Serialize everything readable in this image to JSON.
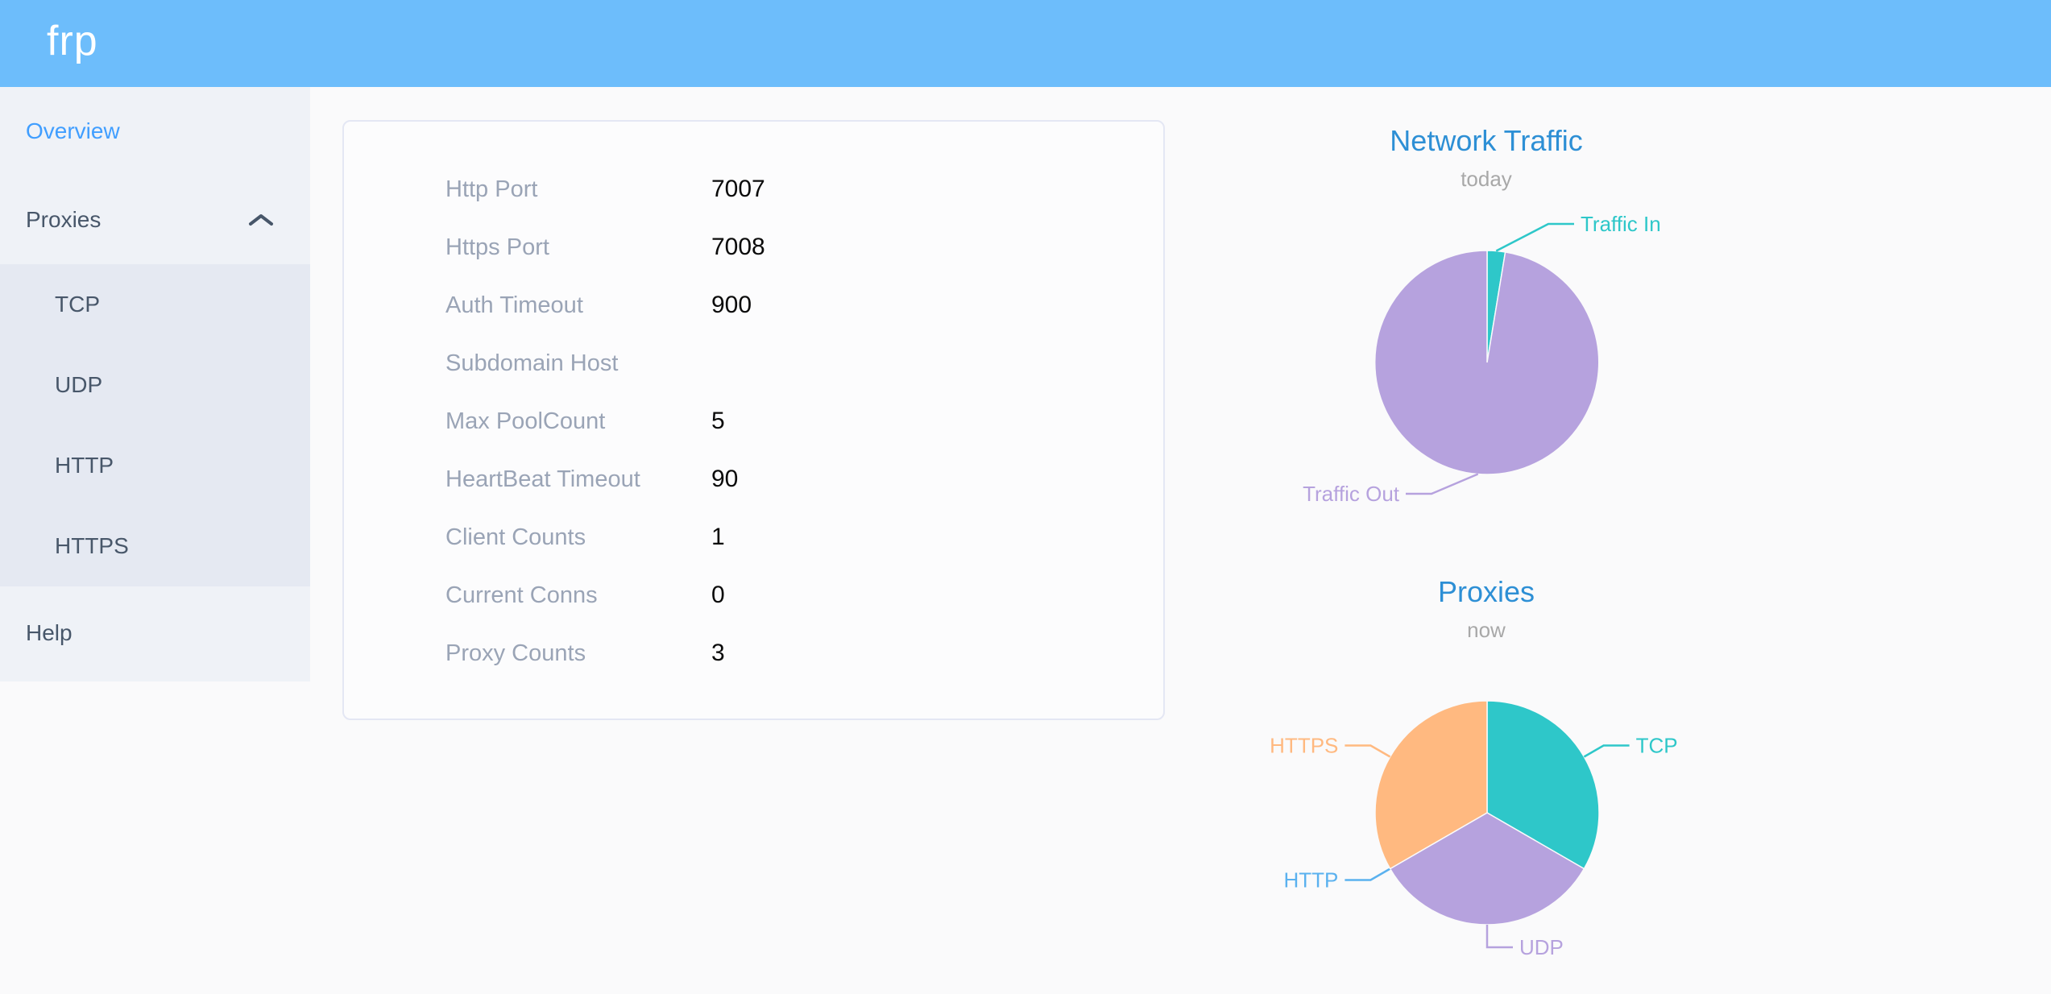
{
  "header": {
    "logo": "frp"
  },
  "sidebar": {
    "overview": "Overview",
    "proxies": "Proxies",
    "proxies_expanded": true,
    "children": [
      "TCP",
      "UDP",
      "HTTP",
      "HTTPS"
    ],
    "help": "Help"
  },
  "overview_card": {
    "rows": [
      {
        "label": "Http Port",
        "value": "7007"
      },
      {
        "label": "Https Port",
        "value": "7008"
      },
      {
        "label": "Auth Timeout",
        "value": "900"
      },
      {
        "label": "Subdomain Host",
        "value": ""
      },
      {
        "label": "Max PoolCount",
        "value": "5"
      },
      {
        "label": "HeartBeat Timeout",
        "value": "90"
      },
      {
        "label": "Client Counts",
        "value": "1"
      },
      {
        "label": "Current Conns",
        "value": "0"
      },
      {
        "label": "Proxy Counts",
        "value": "3"
      }
    ]
  },
  "colors": {
    "header_bg": "#6dbdfb",
    "sidebar_bg": "#eff2f7",
    "submenu_bg": "#e5e9f2",
    "menu_text": "#48576a",
    "menu_active": "#409eff",
    "chart_title_blue": "#2d8fd5",
    "teal": "#2ec7c9",
    "purple": "#b6a2de",
    "blue": "#5ab1ef",
    "orange": "#ffb980"
  },
  "chart_data": [
    {
      "type": "pie",
      "title": "Network Traffic",
      "subtitle": "today",
      "legend_position": "none",
      "labels": "outside with leader lines",
      "note": "absolute byte values not shown; slice shares estimated from arc angles",
      "series": [
        {
          "name": "Traffic In",
          "value": 2.6,
          "color": "#2ec7c9"
        },
        {
          "name": "Traffic Out",
          "value": 97.4,
          "color": "#b6a2de"
        }
      ]
    },
    {
      "type": "pie",
      "title": "Proxies",
      "subtitle": "now",
      "legend_position": "none",
      "labels": "outside with leader lines",
      "note": "slice counts inferred from equal 120-degree arcs and Proxy Counts = 3; HTTP slice has zero width",
      "series": [
        {
          "name": "TCP",
          "value": 1,
          "color": "#2ec7c9"
        },
        {
          "name": "UDP",
          "value": 1,
          "color": "#b6a2de"
        },
        {
          "name": "HTTP",
          "value": 0,
          "color": "#5ab1ef"
        },
        {
          "name": "HTTPS",
          "value": 1,
          "color": "#ffb980"
        }
      ]
    }
  ]
}
